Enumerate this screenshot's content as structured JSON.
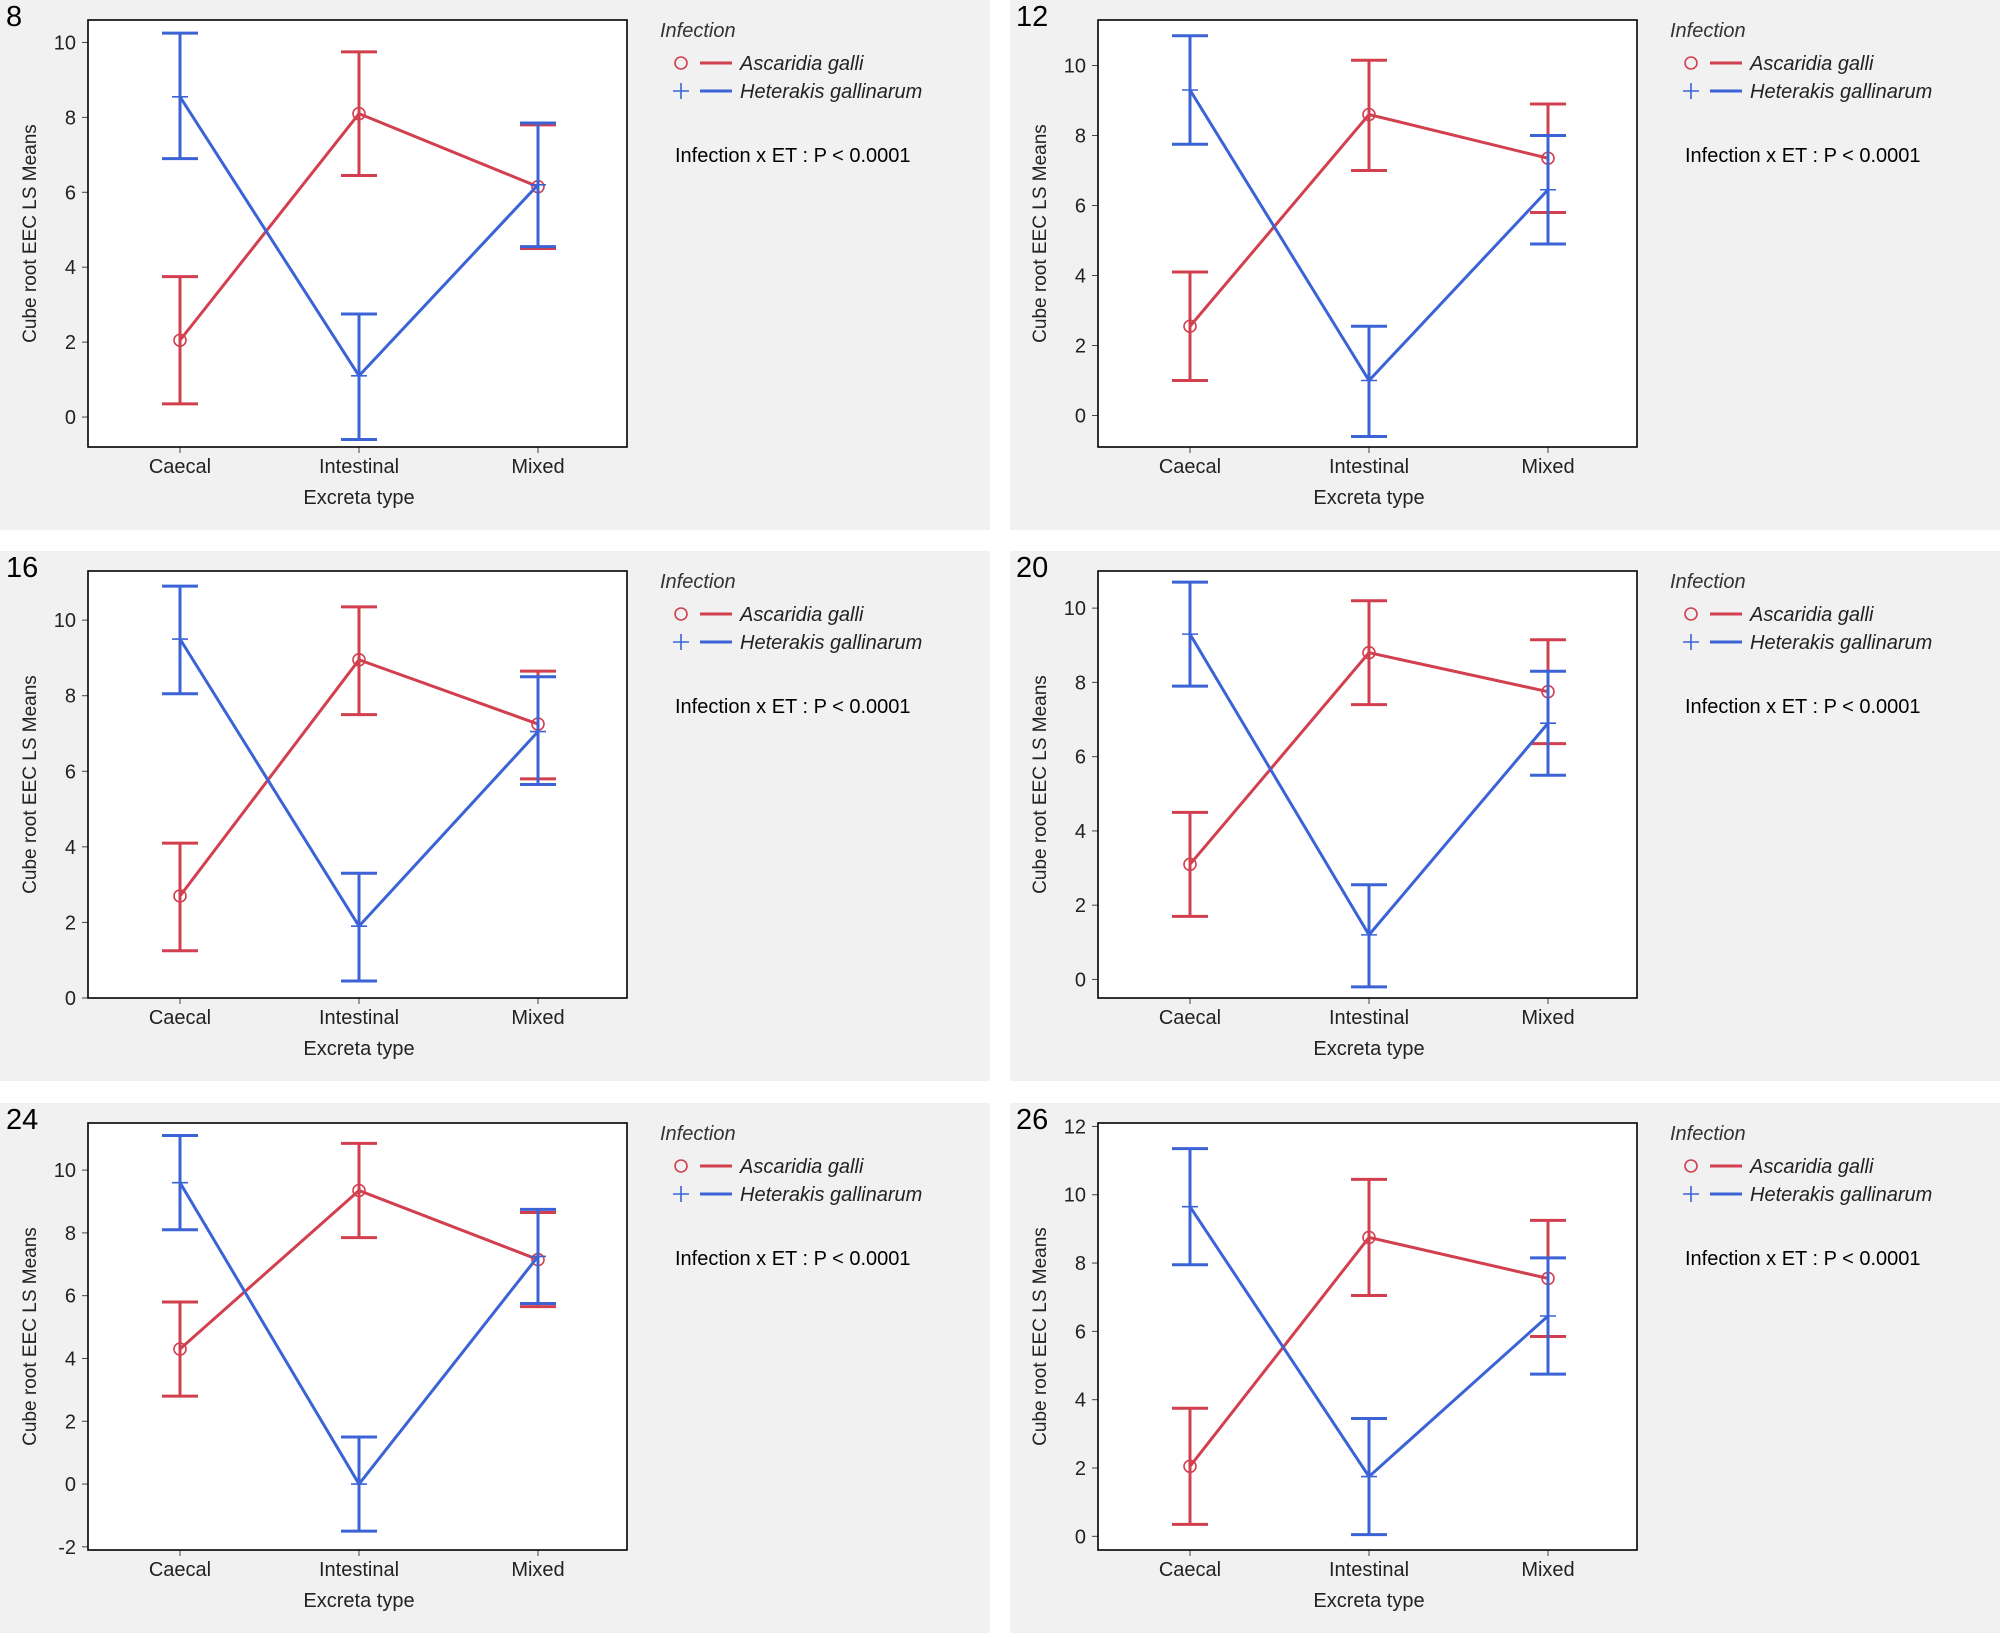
{
  "colors": {
    "ascaridia": "#d2404f",
    "heterakis": "#3b63d6",
    "panel_bg": "#f1f1f1",
    "frame": "#000000"
  },
  "common": {
    "categories": [
      "Caecal",
      "Intestinal",
      "Mixed"
    ],
    "xlabel": "Excreta type",
    "ylabel": "Cube root EEC LS Means",
    "legend_title": "Infection",
    "series_names": [
      "Ascaridia galli",
      "Heterakis gallinarum"
    ],
    "series_icons": [
      "circle-marker-icon",
      "plus-marker-icon"
    ]
  },
  "chart_data": [
    {
      "type": "line",
      "title": "8",
      "annotation": "Infection x ET : P < 0.0001",
      "ylim": [
        -0.8,
        10.6
      ],
      "yticks": [
        0,
        2,
        4,
        6,
        8,
        10
      ],
      "categories": [
        "Caecal",
        "Intestinal",
        "Mixed"
      ],
      "series": [
        {
          "name": "Ascaridia galli",
          "values": [
            2.05,
            8.1,
            6.15
          ],
          "lower": [
            0.35,
            6.45,
            4.5
          ],
          "upper": [
            3.75,
            9.75,
            7.8
          ]
        },
        {
          "name": "Heterakis gallinarum",
          "values": [
            8.55,
            1.1,
            6.2
          ],
          "lower": [
            6.9,
            -0.6,
            4.55
          ],
          "upper": [
            10.25,
            2.75,
            7.85
          ]
        }
      ]
    },
    {
      "type": "line",
      "title": "12",
      "annotation": "Infection x ET : P < 0.0001",
      "ylim": [
        -0.9,
        11.3
      ],
      "yticks": [
        0,
        2,
        4,
        6,
        8,
        10
      ],
      "categories": [
        "Caecal",
        "Intestinal",
        "Mixed"
      ],
      "series": [
        {
          "name": "Ascaridia galli",
          "values": [
            2.55,
            8.6,
            7.35
          ],
          "lower": [
            1.0,
            7.0,
            5.8
          ],
          "upper": [
            4.1,
            10.15,
            8.9
          ]
        },
        {
          "name": "Heterakis gallinarum",
          "values": [
            9.3,
            1.0,
            6.45
          ],
          "lower": [
            7.75,
            -0.6,
            4.9
          ],
          "upper": [
            10.85,
            2.55,
            8.0
          ]
        }
      ]
    },
    {
      "type": "line",
      "title": "16",
      "annotation": "Infection x ET : P < 0.0001",
      "ylim": [
        0,
        11.3
      ],
      "yticks": [
        0,
        2,
        4,
        6,
        8,
        10
      ],
      "categories": [
        "Caecal",
        "Intestinal",
        "Mixed"
      ],
      "series": [
        {
          "name": "Ascaridia galli",
          "values": [
            2.7,
            8.95,
            7.25
          ],
          "lower": [
            1.25,
            7.5,
            5.8
          ],
          "upper": [
            4.1,
            10.35,
            8.65
          ]
        },
        {
          "name": "Heterakis gallinarum",
          "values": [
            9.5,
            1.9,
            7.05
          ],
          "lower": [
            8.05,
            0.45,
            5.65
          ],
          "upper": [
            10.9,
            3.3,
            8.5
          ]
        }
      ]
    },
    {
      "type": "line",
      "title": "20",
      "annotation": "Infection x ET : P < 0.0001",
      "ylim": [
        -0.5,
        11.0
      ],
      "yticks": [
        0,
        2,
        4,
        6,
        8,
        10
      ],
      "categories": [
        "Caecal",
        "Intestinal",
        "Mixed"
      ],
      "series": [
        {
          "name": "Ascaridia galli",
          "values": [
            3.1,
            8.8,
            7.75
          ],
          "lower": [
            1.7,
            7.4,
            6.35
          ],
          "upper": [
            4.5,
            10.2,
            9.15
          ]
        },
        {
          "name": "Heterakis gallinarum",
          "values": [
            9.3,
            1.2,
            6.9
          ],
          "lower": [
            7.9,
            -0.2,
            5.5
          ],
          "upper": [
            10.7,
            2.55,
            8.3
          ]
        }
      ]
    },
    {
      "type": "line",
      "title": "24",
      "annotation": "Infection x ET : P < 0.0001",
      "ylim": [
        -2.1,
        11.5
      ],
      "yticks": [
        -2,
        0,
        2,
        4,
        6,
        8,
        10
      ],
      "categories": [
        "Caecal",
        "Intestinal",
        "Mixed"
      ],
      "series": [
        {
          "name": "Ascaridia galli",
          "values": [
            4.3,
            9.35,
            7.15
          ],
          "lower": [
            2.8,
            7.85,
            5.65
          ],
          "upper": [
            5.8,
            10.85,
            8.65
          ]
        },
        {
          "name": "Heterakis gallinarum",
          "values": [
            9.6,
            0.0,
            7.25
          ],
          "lower": [
            8.1,
            -1.5,
            5.75
          ],
          "upper": [
            11.1,
            1.5,
            8.75
          ]
        }
      ]
    },
    {
      "type": "line",
      "title": "26",
      "annotation": "Infection x ET : P < 0.0001",
      "ylim": [
        -0.4,
        12.1
      ],
      "yticks": [
        0,
        2,
        4,
        6,
        8,
        10,
        12
      ],
      "categories": [
        "Caecal",
        "Intestinal",
        "Mixed"
      ],
      "series": [
        {
          "name": "Ascaridia galli",
          "values": [
            2.05,
            8.75,
            7.55
          ],
          "lower": [
            0.35,
            7.05,
            5.85
          ],
          "upper": [
            3.75,
            10.45,
            9.25
          ]
        },
        {
          "name": "Heterakis gallinarum",
          "values": [
            9.65,
            1.75,
            6.45
          ],
          "lower": [
            7.95,
            0.05,
            4.75
          ],
          "upper": [
            11.35,
            3.45,
            8.15
          ]
        }
      ]
    }
  ]
}
